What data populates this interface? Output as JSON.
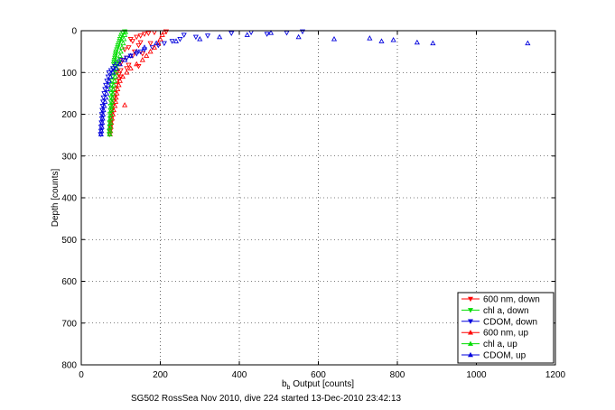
{
  "chart_data": {
    "type": "scatter",
    "title": "",
    "xlabel_main": "b",
    "xlabel_sub": "b",
    "xlabel_rest": " Output [counts]",
    "ylabel": "Depth [counts]",
    "caption": "SG502 RossSea Nov 2010, dive 224 started 13-Dec-2010 23:42:13",
    "xlim": [
      0,
      1200
    ],
    "ylim": [
      0,
      800
    ],
    "y_reversed": true,
    "grid": true,
    "legend_position": "bottom-right",
    "x_ticks": [
      "0",
      "200",
      "400",
      "600",
      "800",
      "1000",
      "1200"
    ],
    "y_ticks": [
      "0",
      "100",
      "200",
      "300",
      "400",
      "500",
      "600",
      "700",
      "800"
    ],
    "series": [
      {
        "name": "600 nm, down",
        "color": "#ff0000",
        "marker": "triangle-down",
        "points": [
          [
            215,
            2
          ],
          [
            185,
            4
          ],
          [
            170,
            6
          ],
          [
            160,
            8
          ],
          [
            150,
            12
          ],
          [
            140,
            15
          ],
          [
            125,
            20
          ],
          [
            130,
            25
          ],
          [
            150,
            28
          ],
          [
            175,
            30
          ],
          [
            145,
            35
          ],
          [
            120,
            40
          ],
          [
            110,
            45
          ],
          [
            135,
            50
          ],
          [
            155,
            55
          ],
          [
            130,
            60
          ],
          [
            115,
            65
          ],
          [
            105,
            70
          ],
          [
            100,
            78
          ],
          [
            120,
            82
          ],
          [
            145,
            85
          ],
          [
            115,
            90
          ],
          [
            100,
            95
          ],
          [
            90,
            100
          ],
          [
            95,
            105
          ],
          [
            100,
            110
          ],
          [
            95,
            115
          ],
          [
            90,
            120
          ],
          [
            88,
            130
          ],
          [
            86,
            140
          ],
          [
            85,
            150
          ],
          [
            84,
            160
          ],
          [
            82,
            170
          ],
          [
            80,
            180
          ],
          [
            78,
            190
          ],
          [
            77,
            200
          ],
          [
            76,
            210
          ],
          [
            75,
            220
          ],
          [
            74,
            230
          ],
          [
            73,
            240
          ],
          [
            72,
            248
          ]
        ]
      },
      {
        "name": "chl a, down",
        "color": "#00dd00",
        "marker": "triangle-down",
        "points": [
          [
            110,
            2
          ],
          [
            105,
            5
          ],
          [
            102,
            10
          ],
          [
            100,
            15
          ],
          [
            98,
            20
          ],
          [
            97,
            25
          ],
          [
            95,
            30
          ],
          [
            93,
            35
          ],
          [
            92,
            40
          ],
          [
            90,
            45
          ],
          [
            88,
            50
          ],
          [
            87,
            55
          ],
          [
            86,
            60
          ],
          [
            85,
            65
          ],
          [
            84,
            70
          ],
          [
            83,
            75
          ],
          [
            82,
            80
          ],
          [
            81,
            90
          ],
          [
            80,
            100
          ],
          [
            79,
            110
          ],
          [
            78,
            120
          ],
          [
            77,
            130
          ],
          [
            76,
            140
          ],
          [
            76,
            150
          ],
          [
            75,
            160
          ],
          [
            75,
            170
          ],
          [
            74,
            180
          ],
          [
            74,
            190
          ],
          [
            73,
            200
          ],
          [
            73,
            210
          ],
          [
            72,
            220
          ],
          [
            72,
            230
          ],
          [
            71,
            240
          ],
          [
            71,
            248
          ]
        ]
      },
      {
        "name": "CDOM, down",
        "color": "#0000dd",
        "marker": "triangle-down",
        "points": [
          [
            560,
            2
          ],
          [
            520,
            5
          ],
          [
            470,
            8
          ],
          [
            430,
            4
          ],
          [
            380,
            6
          ],
          [
            320,
            12
          ],
          [
            290,
            15
          ],
          [
            260,
            10
          ],
          [
            250,
            20
          ],
          [
            230,
            25
          ],
          [
            210,
            30
          ],
          [
            195,
            35
          ],
          [
            180,
            40
          ],
          [
            160,
            45
          ],
          [
            150,
            50
          ],
          [
            140,
            55
          ],
          [
            125,
            60
          ],
          [
            115,
            65
          ],
          [
            100,
            70
          ],
          [
            95,
            75
          ],
          [
            90,
            80
          ],
          [
            85,
            85
          ],
          [
            80,
            90
          ],
          [
            75,
            95
          ],
          [
            70,
            100
          ],
          [
            68,
            110
          ],
          [
            65,
            120
          ],
          [
            62,
            130
          ],
          [
            60,
            140
          ],
          [
            58,
            150
          ],
          [
            56,
            160
          ],
          [
            55,
            170
          ],
          [
            54,
            180
          ],
          [
            53,
            190
          ],
          [
            52,
            200
          ],
          [
            52,
            210
          ],
          [
            51,
            220
          ],
          [
            50,
            230
          ],
          [
            50,
            240
          ],
          [
            49,
            248
          ]
        ]
      },
      {
        "name": "600 nm, up",
        "color": "#ff0000",
        "marker": "triangle-up",
        "points": [
          [
            73,
            248
          ],
          [
            74,
            240
          ],
          [
            75,
            230
          ],
          [
            76,
            220
          ],
          [
            78,
            210
          ],
          [
            80,
            200
          ],
          [
            82,
            190
          ],
          [
            85,
            180
          ],
          [
            110,
            178
          ],
          [
            87,
            170
          ],
          [
            88,
            160
          ],
          [
            90,
            150
          ],
          [
            92,
            140
          ],
          [
            95,
            130
          ],
          [
            98,
            120
          ],
          [
            105,
            110
          ],
          [
            115,
            100
          ],
          [
            125,
            90
          ],
          [
            140,
            80
          ],
          [
            155,
            70
          ],
          [
            165,
            60
          ],
          [
            175,
            50
          ],
          [
            185,
            40
          ],
          [
            195,
            30
          ],
          [
            200,
            20
          ],
          [
            205,
            10
          ],
          [
            210,
            3
          ]
        ]
      },
      {
        "name": "chl a, up",
        "color": "#00dd00",
        "marker": "triangle-up",
        "points": [
          [
            72,
            248
          ],
          [
            73,
            240
          ],
          [
            73,
            230
          ],
          [
            74,
            220
          ],
          [
            74,
            210
          ],
          [
            75,
            200
          ],
          [
            76,
            190
          ],
          [
            77,
            180
          ],
          [
            78,
            170
          ],
          [
            79,
            160
          ],
          [
            80,
            150
          ],
          [
            81,
            140
          ],
          [
            82,
            130
          ],
          [
            84,
            120
          ],
          [
            86,
            110
          ],
          [
            88,
            100
          ],
          [
            90,
            90
          ],
          [
            92,
            80
          ],
          [
            95,
            70
          ],
          [
            98,
            60
          ],
          [
            100,
            50
          ],
          [
            103,
            40
          ],
          [
            106,
            30
          ],
          [
            108,
            20
          ],
          [
            110,
            10
          ],
          [
            112,
            3
          ]
        ]
      },
      {
        "name": "CDOM, up",
        "color": "#0000dd",
        "marker": "triangle-up",
        "points": [
          [
            50,
            248
          ],
          [
            51,
            240
          ],
          [
            52,
            230
          ],
          [
            53,
            220
          ],
          [
            54,
            210
          ],
          [
            55,
            200
          ],
          [
            56,
            190
          ],
          [
            58,
            180
          ],
          [
            60,
            170
          ],
          [
            62,
            160
          ],
          [
            64,
            150
          ],
          [
            66,
            140
          ],
          [
            68,
            130
          ],
          [
            70,
            120
          ],
          [
            74,
            110
          ],
          [
            80,
            100
          ],
          [
            88,
            90
          ],
          [
            98,
            80
          ],
          [
            110,
            70
          ],
          [
            125,
            60
          ],
          [
            140,
            50
          ],
          [
            160,
            40
          ],
          [
            190,
            30
          ],
          [
            240,
            25
          ],
          [
            300,
            20
          ],
          [
            350,
            15
          ],
          [
            420,
            10
          ],
          [
            480,
            5
          ],
          [
            550,
            15
          ],
          [
            640,
            20
          ],
          [
            730,
            18
          ],
          [
            760,
            25
          ],
          [
            790,
            22
          ],
          [
            850,
            28
          ],
          [
            890,
            30
          ],
          [
            1130,
            30
          ]
        ]
      }
    ]
  }
}
